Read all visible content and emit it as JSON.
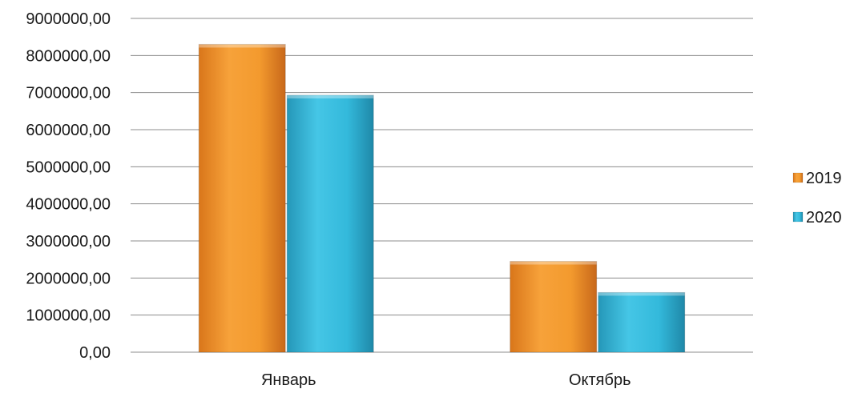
{
  "chart_data": {
    "type": "bar",
    "categories": [
      "Январь",
      "Октябрь"
    ],
    "series": [
      {
        "name": "2019",
        "values": [
          8300000,
          2450000
        ],
        "color": "#F39A2E"
      },
      {
        "name": "2020",
        "values": [
          6930000,
          1610000
        ],
        "color": "#33B9DB"
      }
    ],
    "yticks": [
      "0,00",
      "1000000,00",
      "2000000,00",
      "3000000,00",
      "4000000,00",
      "5000000,00",
      "6000000,00",
      "7000000,00",
      "8000000,00",
      "9000000,00"
    ],
    "ylim": [
      0,
      9000000
    ],
    "grid": true,
    "legend_position": "right"
  }
}
